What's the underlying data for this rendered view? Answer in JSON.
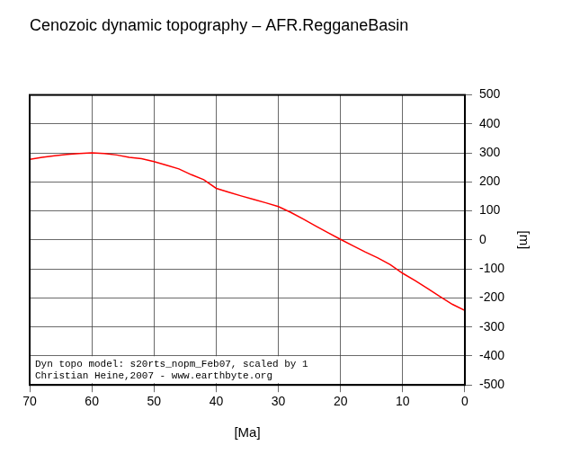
{
  "chart_data": {
    "type": "line",
    "title": "Cenozoic dynamic topography – AFR.RegganeBasin",
    "x_label": "[Ma]",
    "y_label": "[m]",
    "annotations": [
      "Dyn topo model: s20rts_nopm_Feb07, scaled by 1",
      "Christian Heine,2007 - www.earthbyte.org"
    ],
    "x": [
      70,
      68,
      66,
      64,
      62,
      60,
      58,
      56,
      54,
      52,
      50,
      48,
      46,
      44,
      42,
      40,
      38,
      36,
      34,
      32,
      30,
      28,
      26,
      24,
      22,
      20,
      18,
      16,
      14,
      12,
      10,
      8,
      6,
      4,
      2,
      0
    ],
    "values": [
      278,
      285,
      290,
      295,
      298,
      300,
      298,
      293,
      285,
      280,
      270,
      258,
      245,
      225,
      208,
      178,
      165,
      152,
      140,
      128,
      115,
      95,
      72,
      48,
      25,
      2,
      -20,
      -42,
      -62,
      -85,
      -115,
      -140,
      -167,
      -195,
      -222,
      -243
    ],
    "color": "#ff0000",
    "xlim": [
      70,
      0
    ],
    "xticks": [
      70,
      60,
      50,
      40,
      30,
      20,
      10,
      0
    ],
    "ylim": [
      -500,
      500
    ],
    "yticks": [
      -500,
      -400,
      -300,
      -200,
      -100,
      0,
      100,
      200,
      300,
      400,
      500
    ],
    "grid": true
  }
}
